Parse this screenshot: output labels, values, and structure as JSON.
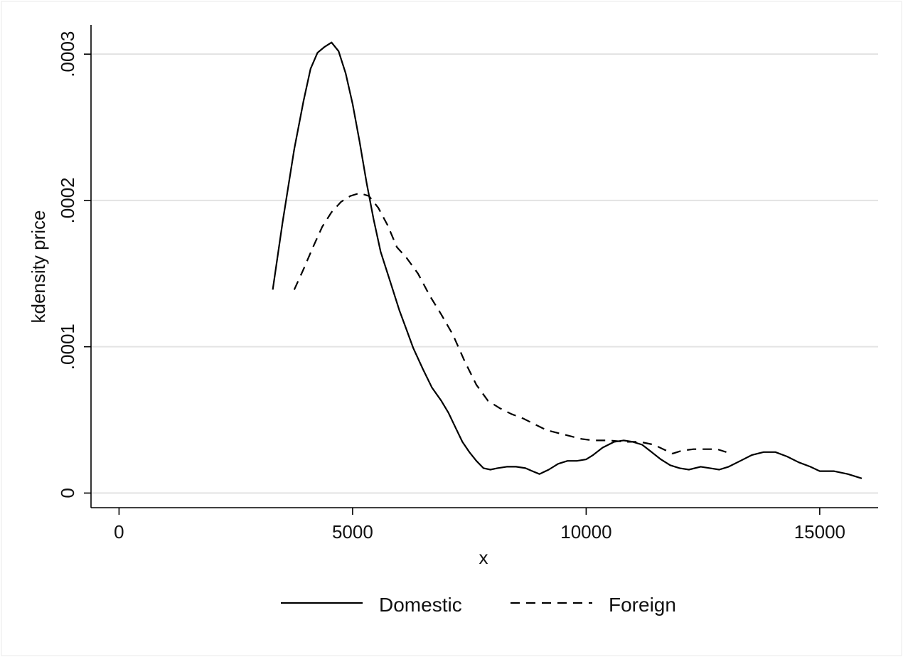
{
  "chart_data": {
    "type": "line",
    "title": "",
    "xlabel": "x",
    "ylabel": "kdensity price",
    "xlim": [
      -600,
      16250
    ],
    "ylim": [
      -1e-05,
      0.00032
    ],
    "x_ticks": [
      0,
      5000,
      10000,
      15000
    ],
    "x_tick_labels": [
      "0",
      "5000",
      "10000",
      "15000"
    ],
    "y_ticks": [
      0,
      0.0001,
      0.0002,
      0.0003
    ],
    "y_tick_labels": [
      "0",
      ".0001",
      ".0002",
      ".0003"
    ],
    "grid": "horizontal",
    "legend": "bottom",
    "series": [
      {
        "name": "Domestic",
        "style": "solid",
        "color": "#000000",
        "points": [
          [
            3290,
            0.000139
          ],
          [
            3500,
            0.000185
          ],
          [
            3750,
            0.000235
          ],
          [
            3950,
            0.000268
          ],
          [
            4100,
            0.00029
          ],
          [
            4250,
            0.000301
          ],
          [
            4400,
            0.000305
          ],
          [
            4550,
            0.000308
          ],
          [
            4700,
            0.000302
          ],
          [
            4850,
            0.000287
          ],
          [
            5000,
            0.000266
          ],
          [
            5150,
            0.00024
          ],
          [
            5300,
            0.000212
          ],
          [
            5450,
            0.000187
          ],
          [
            5600,
            0.000165
          ],
          [
            5800,
            0.000145
          ],
          [
            6000,
            0.000125
          ],
          [
            6150,
            0.000112
          ],
          [
            6300,
            9.9e-05
          ],
          [
            6500,
            8.5e-05
          ],
          [
            6700,
            7.2e-05
          ],
          [
            6900,
            6.3e-05
          ],
          [
            7050,
            5.5e-05
          ],
          [
            7200,
            4.5e-05
          ],
          [
            7350,
            3.5e-05
          ],
          [
            7500,
            2.8e-05
          ],
          [
            7650,
            2.2e-05
          ],
          [
            7800,
            1.7e-05
          ],
          [
            7950,
            1.6e-05
          ],
          [
            8100,
            1.7e-05
          ],
          [
            8300,
            1.8e-05
          ],
          [
            8500,
            1.8e-05
          ],
          [
            8700,
            1.7e-05
          ],
          [
            8850,
            1.5e-05
          ],
          [
            9000,
            1.3e-05
          ],
          [
            9200,
            1.6e-05
          ],
          [
            9400,
            2e-05
          ],
          [
            9600,
            2.2e-05
          ],
          [
            9800,
            2.2e-05
          ],
          [
            10000,
            2.3e-05
          ],
          [
            10150,
            2.6e-05
          ],
          [
            10350,
            3.1e-05
          ],
          [
            10600,
            3.5e-05
          ],
          [
            10800,
            3.6e-05
          ],
          [
            11000,
            3.5e-05
          ],
          [
            11200,
            3.3e-05
          ],
          [
            11400,
            2.8e-05
          ],
          [
            11600,
            2.3e-05
          ],
          [
            11800,
            1.9e-05
          ],
          [
            12000,
            1.7e-05
          ],
          [
            12200,
            1.6e-05
          ],
          [
            12450,
            1.8e-05
          ],
          [
            12650,
            1.7e-05
          ],
          [
            12850,
            1.6e-05
          ],
          [
            13050,
            1.8e-05
          ],
          [
            13300,
            2.2e-05
          ],
          [
            13550,
            2.6e-05
          ],
          [
            13800,
            2.8e-05
          ],
          [
            14050,
            2.8e-05
          ],
          [
            14300,
            2.5e-05
          ],
          [
            14550,
            2.1e-05
          ],
          [
            14800,
            1.8e-05
          ],
          [
            15000,
            1.5e-05
          ],
          [
            15300,
            1.5e-05
          ],
          [
            15600,
            1.3e-05
          ],
          [
            15900,
            1e-05
          ]
        ]
      },
      {
        "name": "Foreign",
        "style": "dashed",
        "color": "#000000",
        "points": [
          [
            3750,
            0.000139
          ],
          [
            3950,
            0.000153
          ],
          [
            4150,
            0.000168
          ],
          [
            4350,
            0.000182
          ],
          [
            4550,
            0.000192
          ],
          [
            4750,
            0.000199
          ],
          [
            4950,
            0.000203
          ],
          [
            5150,
            0.000205
          ],
          [
            5350,
            0.000203
          ],
          [
            5550,
            0.000195
          ],
          [
            5750,
            0.000183
          ],
          [
            5950,
            0.000168
          ],
          [
            6150,
            0.000161
          ],
          [
            6400,
            0.00015
          ],
          [
            6650,
            0.000135
          ],
          [
            6900,
            0.000122
          ],
          [
            7150,
            0.000108
          ],
          [
            7400,
            9e-05
          ],
          [
            7650,
            7.4e-05
          ],
          [
            7900,
            6.3e-05
          ],
          [
            8150,
            5.8e-05
          ],
          [
            8400,
            5.4e-05
          ],
          [
            8650,
            5.1e-05
          ],
          [
            8900,
            4.7e-05
          ],
          [
            9150,
            4.3e-05
          ],
          [
            9400,
            4.1e-05
          ],
          [
            9650,
            3.9e-05
          ],
          [
            9900,
            3.7e-05
          ],
          [
            10150,
            3.6e-05
          ],
          [
            10500,
            3.6e-05
          ],
          [
            10850,
            3.5e-05
          ],
          [
            11150,
            3.5e-05
          ],
          [
            11450,
            3.3e-05
          ],
          [
            11650,
            3e-05
          ],
          [
            11850,
            2.7e-05
          ],
          [
            12050,
            2.9e-05
          ],
          [
            12300,
            3e-05
          ],
          [
            12600,
            3e-05
          ],
          [
            12800,
            3e-05
          ],
          [
            13000,
            2.8e-05
          ]
        ]
      }
    ]
  }
}
